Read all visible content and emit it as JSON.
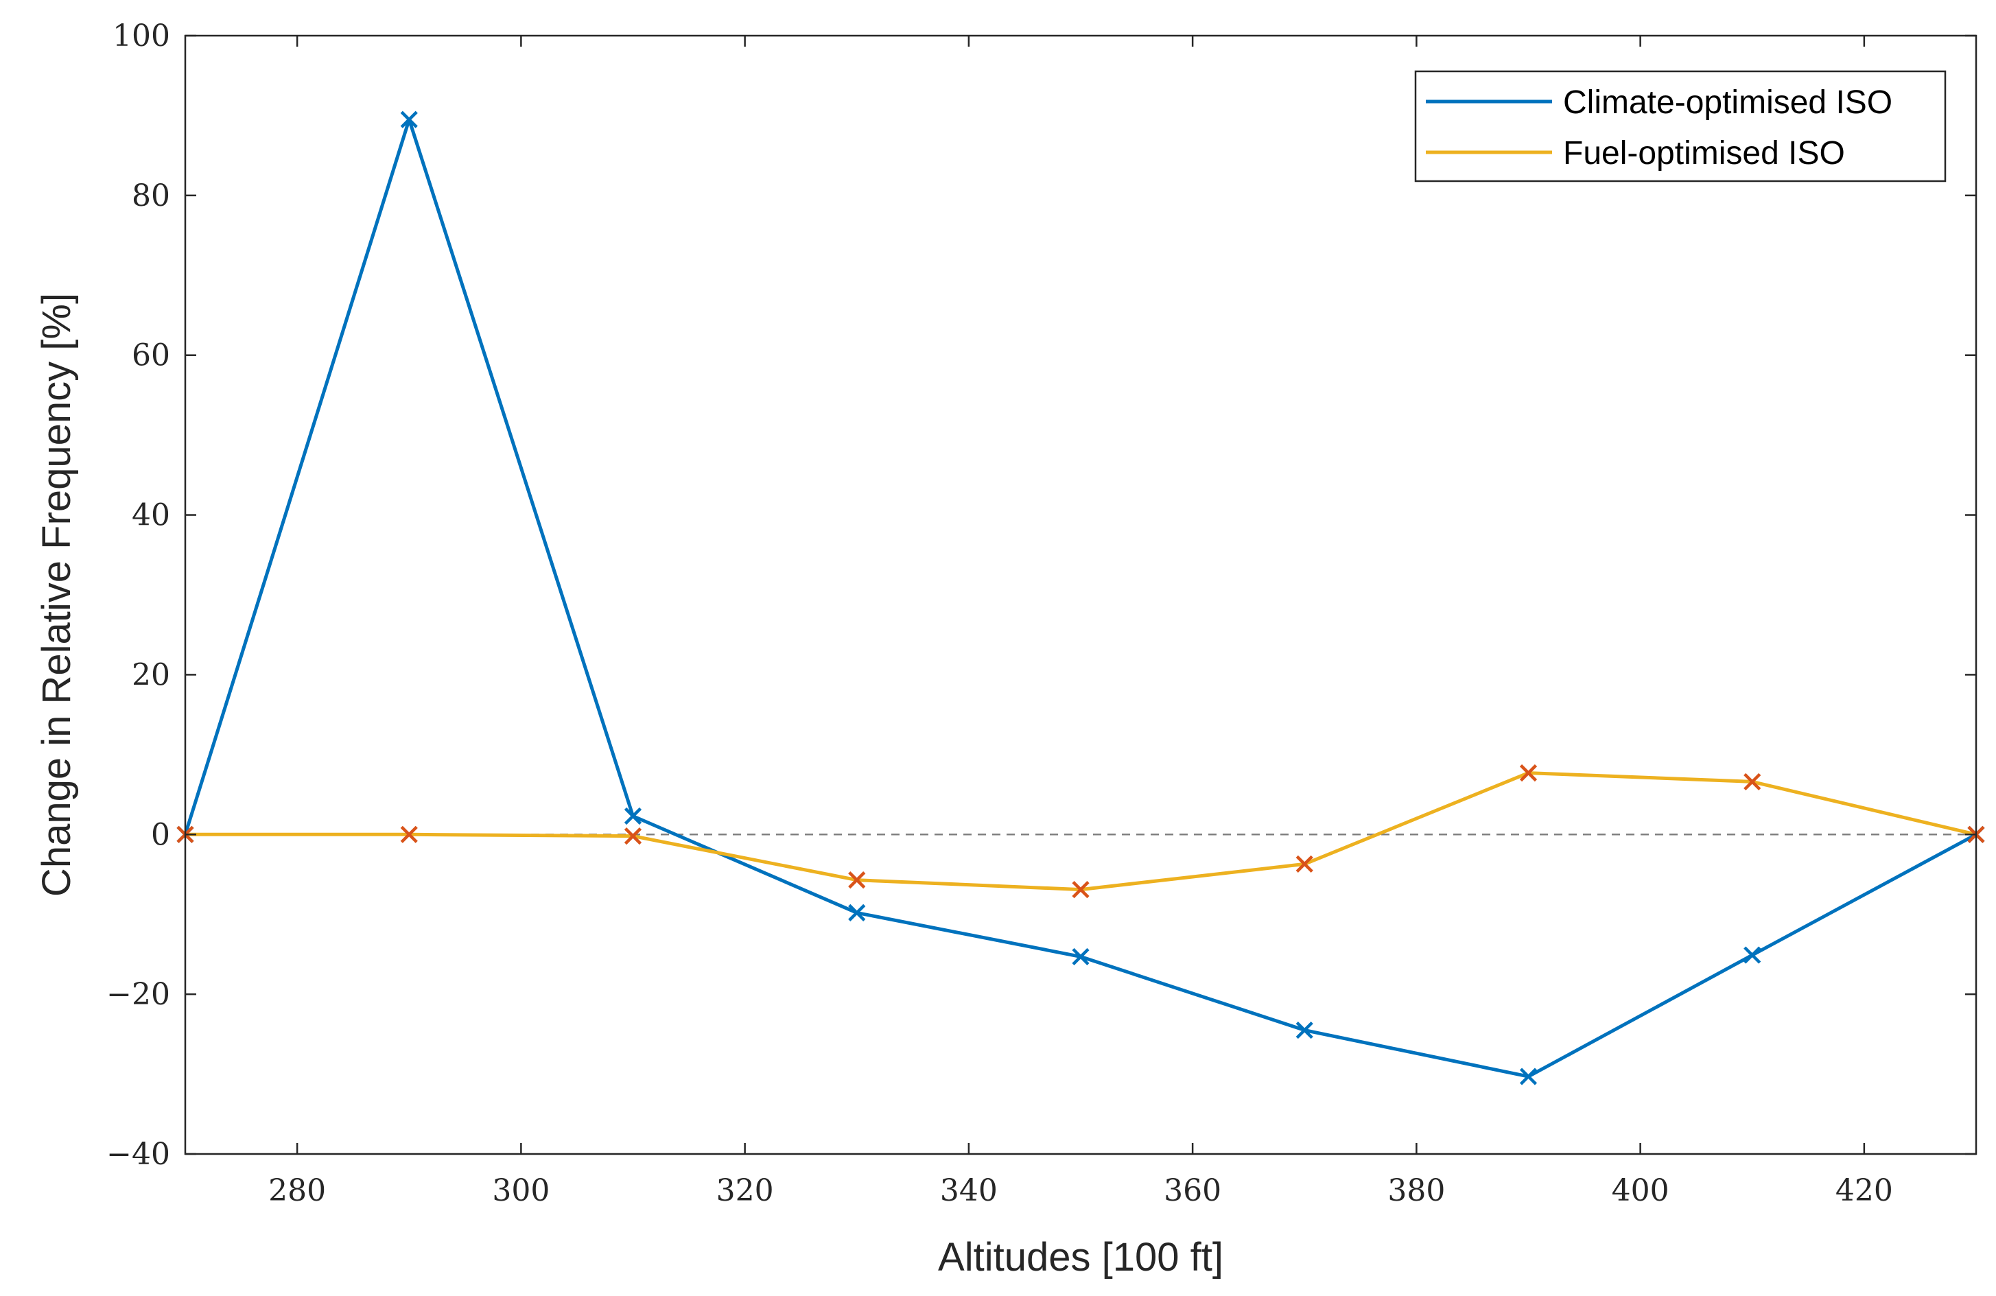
{
  "chart_data": {
    "type": "line",
    "title": "",
    "xlabel": "Altitudes [100 ft]",
    "ylabel": "Change in Relative Frequency [%]",
    "xlim": [
      270,
      430
    ],
    "ylim": [
      -40,
      100
    ],
    "xticks": [
      280,
      300,
      320,
      340,
      360,
      380,
      400,
      420
    ],
    "yticks": [
      100,
      80,
      60,
      40,
      20,
      0,
      -20,
      -40
    ],
    "ytick_labels": [
      "100",
      "80",
      "60",
      "40",
      "20",
      "0",
      "−20",
      "−40"
    ],
    "x": [
      270,
      290,
      310,
      330,
      350,
      370,
      390,
      410,
      430
    ],
    "reference_line": 0,
    "legend_position": "top-right",
    "series": [
      {
        "name": "Climate-optimised ISO",
        "color": "#0072BD",
        "marker_color": "#0072BD",
        "values": [
          0,
          89.5,
          2.3,
          -9.8,
          -15.3,
          -24.5,
          -30.3,
          -15.1,
          0
        ]
      },
      {
        "name": "Fuel-optimised ISO",
        "color": "#EDB120",
        "marker_color": "#D95319",
        "values": [
          0,
          0,
          -0.2,
          -5.7,
          -6.9,
          -3.7,
          7.7,
          6.6,
          0
        ]
      }
    ]
  }
}
